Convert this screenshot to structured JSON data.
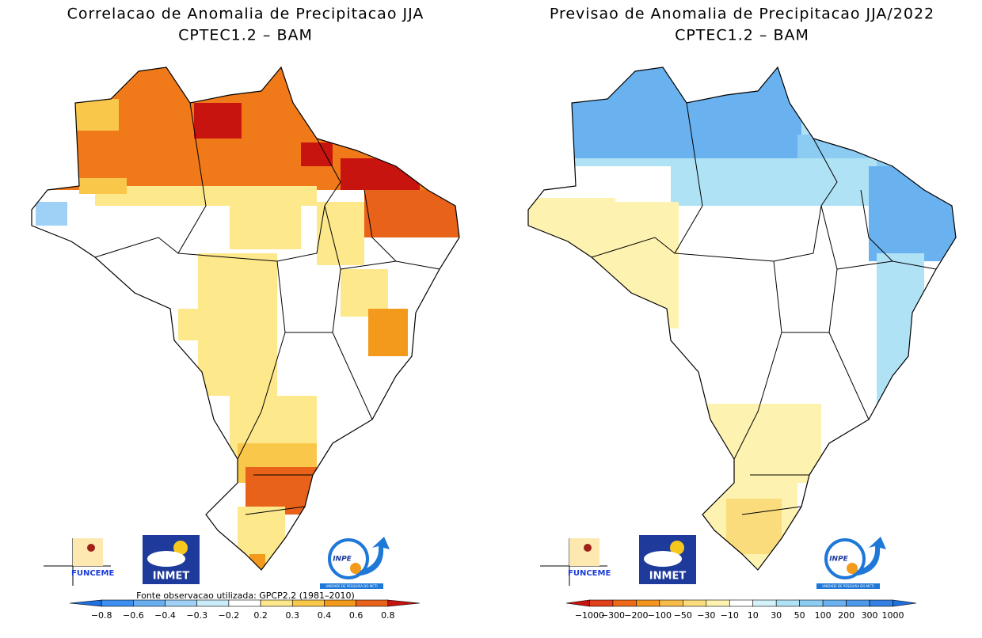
{
  "panels": [
    {
      "title": "Correlacao de Anomalia de Precipitacao JJA",
      "subtitle": "CPTEC1.2 – BAM",
      "source": "Fonte observacao utilizada: GPCP2.2 (1981–2010)",
      "colorbar": {
        "labels": [
          "−0.8",
          "−0.6",
          "−0.4",
          "−0.3",
          "−0.2",
          "0.2",
          "0.3",
          "0.4",
          "0.6",
          "0.8"
        ],
        "colors": [
          "#1e6fe0",
          "#3c8ff0",
          "#6aaef2",
          "#9fd0f6",
          "#c9ecf8",
          "#ffffff",
          "#fde88c",
          "#f9c74a",
          "#f39a1c",
          "#e8621a",
          "#c8140e"
        ]
      }
    },
    {
      "title": "Previsao de Anomalia de Precipitacao JJA/2022",
      "subtitle": "CPTEC1.2 – BAM",
      "colorbar": {
        "labels": [
          "−1000",
          "−300",
          "−200",
          "−100",
          "−50",
          "−30",
          "−10",
          "10",
          "30",
          "50",
          "100",
          "200",
          "300",
          "1000"
        ],
        "colors": [
          "#c8140e",
          "#e0401a",
          "#ee6a1a",
          "#f3951f",
          "#f7bc4a",
          "#fbdc7c",
          "#fdf2b0",
          "#ffffff",
          "#d4f2fa",
          "#b0e2f6",
          "#8cccf3",
          "#6ab2ef",
          "#4c98ea",
          "#3480e3",
          "#1e6fe0"
        ]
      }
    }
  ],
  "logos": {
    "funceme": "FUNCEME",
    "inmet": "INMET",
    "inpe": "INPE",
    "inpe_sub": "UNIDADE DE PESQUISA DO MCTI"
  }
}
